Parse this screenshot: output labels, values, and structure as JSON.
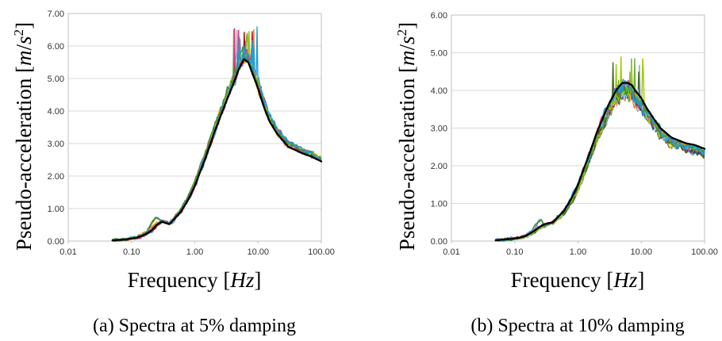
{
  "figure": {
    "ylabel_prefix": "Pseudo-acceleration [",
    "ylabel_unit_m": "m",
    "ylabel_unit_sep": "/",
    "ylabel_unit_s": "s",
    "ylabel_unit_exp": "2",
    "ylabel_suffix": "]",
    "xlabel_prefix": "Frequency [",
    "xlabel_unit": "Hz",
    "xlabel_suffix": "]"
  },
  "chart_data": [
    {
      "type": "line",
      "caption": "(a) Spectra at 5% damping",
      "xscale": "log",
      "xlim": [
        0.01,
        100
      ],
      "ylim": [
        0,
        7
      ],
      "xticks": [
        "0.01",
        "0.10",
        "1.00",
        "10.00",
        "100.00"
      ],
      "yticks": [
        "0.00",
        "1.00",
        "2.00",
        "3.00",
        "4.00",
        "5.00",
        "6.00",
        "7.00"
      ],
      "grid": "horizontal",
      "legend": "none",
      "x": [
        0.05,
        0.08,
        0.12,
        0.15,
        0.2,
        0.25,
        0.3,
        0.4,
        0.6,
        0.8,
        1.0,
        1.5,
        2.0,
        3.0,
        4.0,
        5.0,
        6.0,
        7.0,
        8.0,
        10.0,
        12.0,
        15.0,
        20.0,
        30.0,
        50.0,
        70.0,
        100.0
      ],
      "mean": [
        0.02,
        0.05,
        0.1,
        0.17,
        0.3,
        0.5,
        0.6,
        0.52,
        0.9,
        1.3,
        1.7,
        2.6,
        3.3,
        4.2,
        4.8,
        5.3,
        5.6,
        5.5,
        5.2,
        4.7,
        4.2,
        3.7,
        3.3,
        2.9,
        2.7,
        2.6,
        2.45
      ],
      "series_colors": [
        "#4472c4",
        "#ed7d31",
        "#a5a5a5",
        "#ffc000",
        "#5b9bd5",
        "#70ad47",
        "#264478",
        "#c00000",
        "#43682b",
        "#9dc3e6",
        "#e2368d",
        "#99cc00",
        "#3d8b3d",
        "#1f9ed9",
        "#000000"
      ],
      "peak": 6.6,
      "dip_x": 0.3
    },
    {
      "type": "line",
      "caption": "(b) Spectra at 10% damping",
      "xscale": "log",
      "xlim": [
        0.01,
        100
      ],
      "ylim": [
        0,
        6
      ],
      "xticks": [
        "0.01",
        "0.10",
        "1.00",
        "10.00",
        "100.00"
      ],
      "yticks": [
        "0.00",
        "1.00",
        "2.00",
        "3.00",
        "4.00",
        "5.00",
        "6.00"
      ],
      "grid": "horizontal",
      "legend": "none",
      "x": [
        0.05,
        0.08,
        0.12,
        0.15,
        0.2,
        0.25,
        0.3,
        0.4,
        0.6,
        0.8,
        1.0,
        1.5,
        2.0,
        3.0,
        4.0,
        5.0,
        6.0,
        7.0,
        8.0,
        10.0,
        12.0,
        15.0,
        20.0,
        30.0,
        50.0,
        70.0,
        100.0
      ],
      "mean": [
        0.02,
        0.05,
        0.09,
        0.14,
        0.26,
        0.38,
        0.45,
        0.5,
        0.8,
        1.15,
        1.5,
        2.3,
        2.9,
        3.6,
        4.0,
        4.2,
        4.2,
        4.15,
        4.0,
        3.8,
        3.55,
        3.3,
        3.0,
        2.75,
        2.6,
        2.55,
        2.45
      ],
      "series_colors": [
        "#4472c4",
        "#ed7d31",
        "#a5a5a5",
        "#ffc000",
        "#5b9bd5",
        "#70ad47",
        "#264478",
        "#c00000",
        "#43682b",
        "#9dc3e6",
        "#e2368d",
        "#99cc00",
        "#3d8b3d",
        "#1f9ed9",
        "#000000"
      ],
      "peak": 4.9,
      "dip_x": 0.3
    }
  ]
}
